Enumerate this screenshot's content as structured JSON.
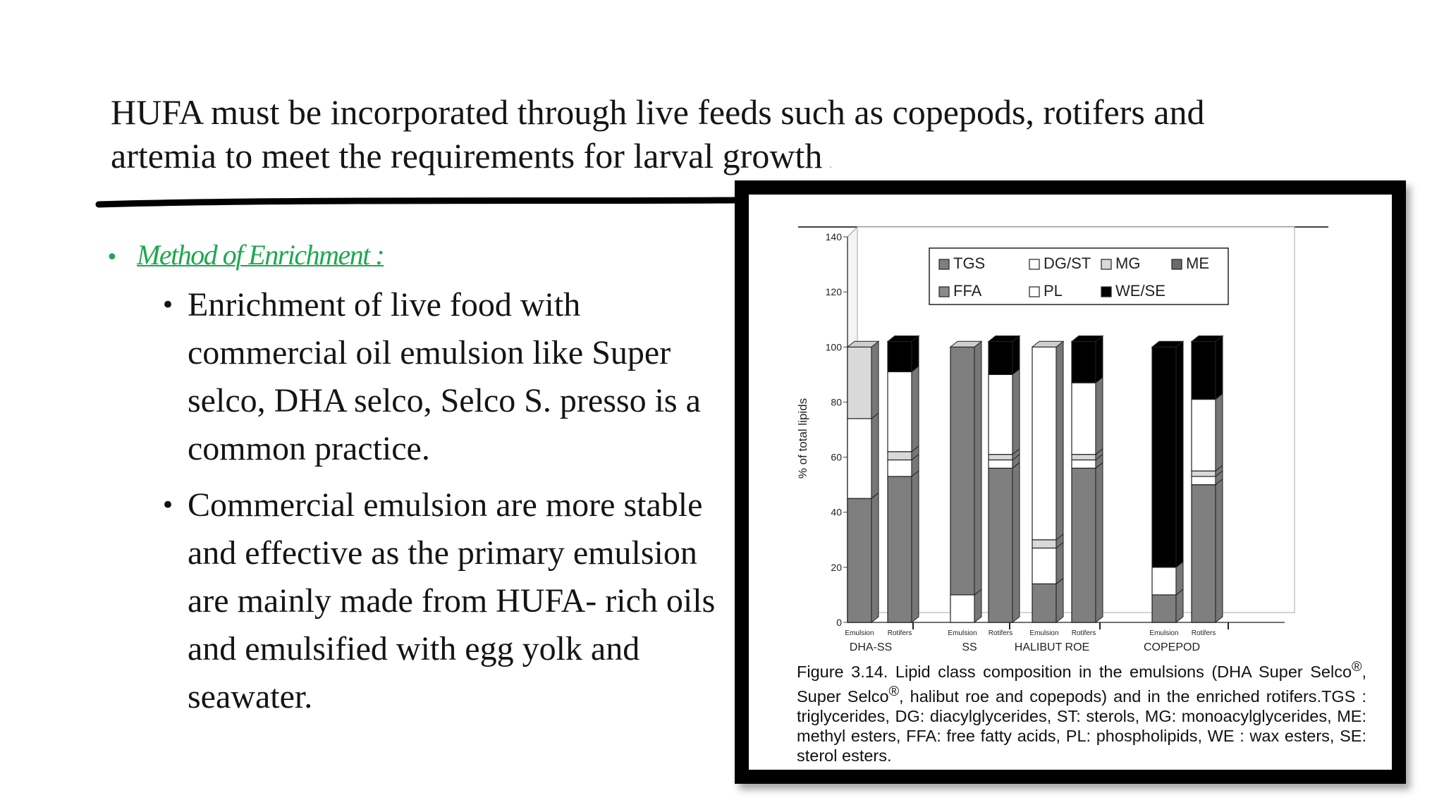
{
  "slide": {
    "title": "HUFA must be incorporated through live feeds such as copepods, rotifers and artemia to meet the requirements for larval growth",
    "title_trailing_mark": "."
  },
  "bullets": {
    "heading": "Method of Enrichment :",
    "items": [
      "Enrichment of live food with commercial oil emulsion like Super selco, DHA selco, Selco S. presso is a common practice.",
      "Commercial emulsion are more stable and effective as the primary emulsion are mainly made from HUFA- rich oils and emulsified with egg yolk and seawater."
    ]
  },
  "colors": {
    "accent_green": "#1ea84f",
    "TGS": "#7f7f7f",
    "DG/ST": "#ffffff",
    "MG": "#d9d9d9",
    "ME": "#6b6b6b",
    "FFA": "#8a8a8a",
    "PL": "#ffffff",
    "WE/SE": "#000000"
  },
  "figure": {
    "caption_html": "Figure 3.14. Lipid class composition in the emulsions (DHA Super Selco<sup>®</sup>, Super Selco<sup>®</sup>, halibut roe and copepods) and in the enriched rotifers.TGS : triglycerides, DG: diacylglycerides, ST: sterols, MG: monoacylglycerides, ME: methyl esters, FFA: free fatty acids, PL: phospholipids, WE : wax esters, SE: sterol esters."
  },
  "chart_data": {
    "type": "bar",
    "stacked": true,
    "ylabel": "% of total lipids",
    "xlabel": "",
    "ylim": [
      0,
      140
    ],
    "yticks": [
      0,
      20,
      40,
      60,
      80,
      100,
      120,
      140
    ],
    "legend": [
      "TGS",
      "DG/ST",
      "MG",
      "ME",
      "FFA",
      "PL",
      "WE/SE"
    ],
    "legend_position": "top-right",
    "groups": [
      "DHA-SS",
      "SS",
      "HALIBUT ROE",
      "COPEPOD"
    ],
    "bar_labels": [
      "Emulsion",
      "Rotifers"
    ],
    "stack_order": [
      "TGS",
      "FFA",
      "DG/ST",
      "MG",
      "PL",
      "WE/SE"
    ],
    "bars": [
      {
        "group": "DHA-SS",
        "label": "Emulsion",
        "TGS": 45,
        "FFA": 0,
        "DG/ST": 0,
        "MG": 0,
        "PL": 29,
        "WE/SE": 0,
        "top_light": 26
      },
      {
        "group": "DHA-SS",
        "label": "Rotifers",
        "TGS": 53,
        "FFA": 0,
        "DG/ST": 6,
        "MG": 3,
        "PL": 29,
        "WE/SE": 11,
        "top_light": 0
      },
      {
        "group": "SS",
        "label": "Emulsion",
        "TGS": 0,
        "FFA": 0,
        "DG/ST": 10,
        "MG": 0,
        "PL": 0,
        "WE/SE": 0,
        "top_light": 0,
        "top_dark": 90
      },
      {
        "group": "SS",
        "label": "Rotifers",
        "TGS": 56,
        "FFA": 0,
        "DG/ST": 3,
        "MG": 2,
        "PL": 29,
        "WE/SE": 12,
        "top_light": 0
      },
      {
        "group": "HALIBUT ROE",
        "label": "Emulsion",
        "TGS": 14,
        "FFA": 0,
        "DG/ST": 13,
        "MG": 3,
        "PL": 70,
        "WE/SE": 0,
        "top_light": 0
      },
      {
        "group": "HALIBUT ROE",
        "label": "Rotifers",
        "TGS": 56,
        "FFA": 0,
        "DG/ST": 3,
        "MG": 2,
        "PL": 26,
        "WE/SE": 15,
        "top_light": 0
      },
      {
        "group": "COPEPOD",
        "label": "Emulsion",
        "TGS": 10,
        "FFA": 0,
        "DG/ST": 10,
        "MG": 0,
        "PL": 0,
        "WE/SE": 80,
        "top_light": 0
      },
      {
        "group": "COPEPOD",
        "label": "Rotifers",
        "TGS": 50,
        "FFA": 0,
        "DG/ST": 3,
        "MG": 2,
        "PL": 26,
        "WE/SE": 21,
        "top_light": 0
      }
    ]
  }
}
